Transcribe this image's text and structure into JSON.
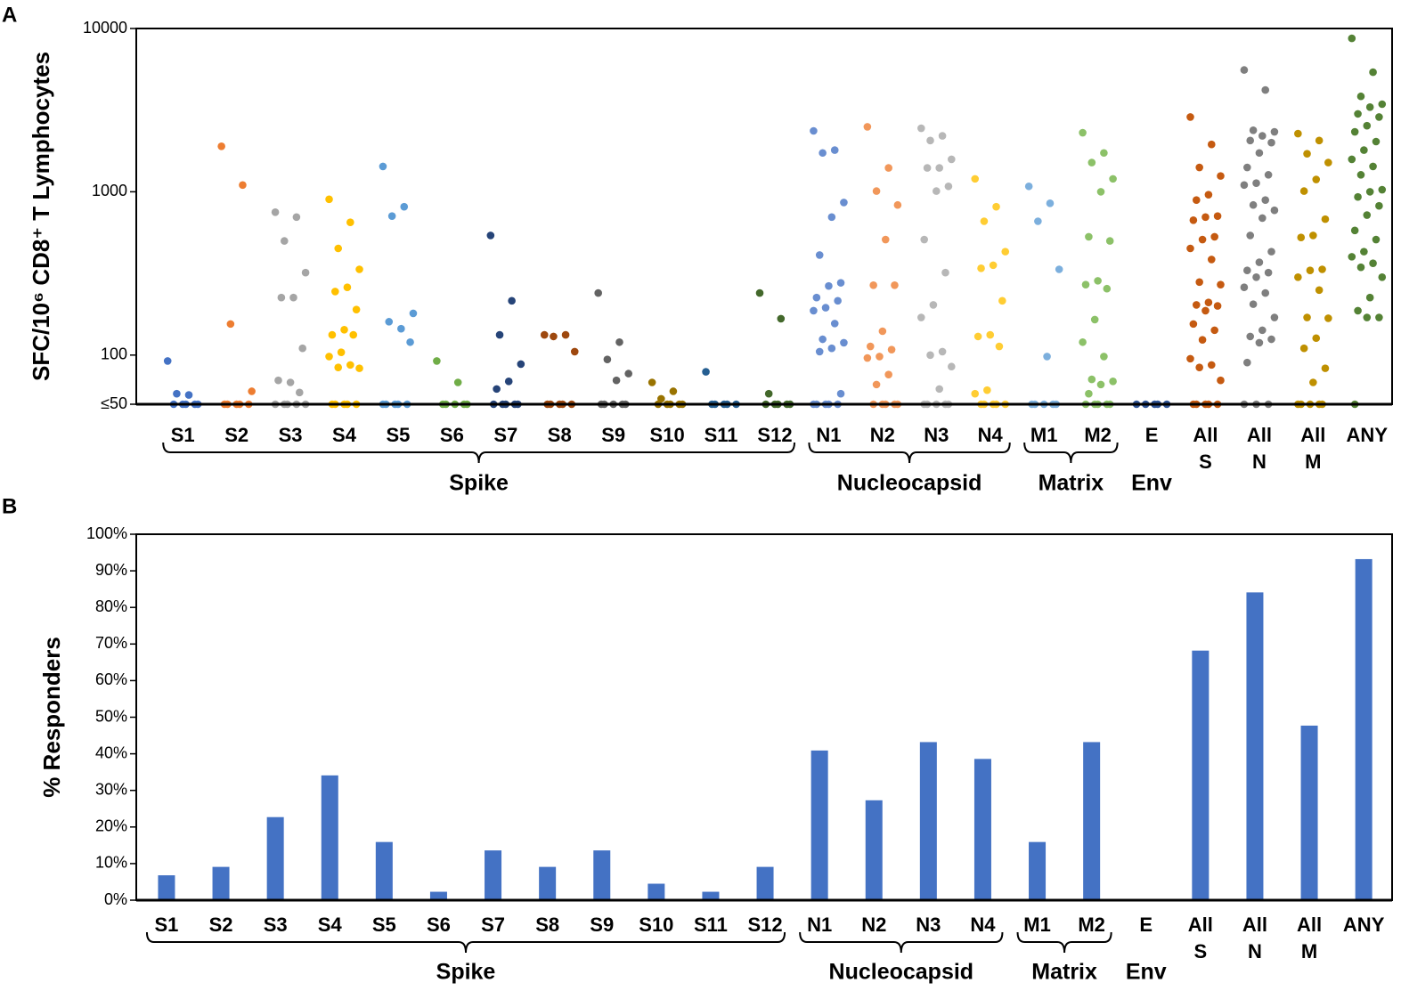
{
  "chart_data": [
    {
      "type": "strip",
      "panel": "A",
      "ylabel": "SFC/10⁶ CD8⁺ T Lymphocytes",
      "log": true,
      "ylim": [
        50,
        10000
      ],
      "yticks": [
        {
          "value": 50,
          "label": "≤50"
        },
        100,
        1000,
        10000
      ],
      "categories": [
        "S1",
        "S2",
        "S3",
        "S4",
        "S5",
        "S6",
        "S7",
        "S8",
        "S9",
        "S10",
        "S11",
        "S12",
        "N1",
        "N2",
        "N3",
        "N4",
        "M1",
        "M2",
        "E",
        "All S",
        "All N",
        "All M",
        "ANY"
      ],
      "colors": [
        "#4472c4",
        "#ed7d31",
        "#a5a5a5",
        "#ffc000",
        "#5b9bd5",
        "#70ad47",
        "#264478",
        "#9e480e",
        "#636363",
        "#997300",
        "#255e91",
        "#43682b",
        "#698ed0",
        "#f1975a",
        "#b7b7b7",
        "#ffcd33",
        "#7cafdd",
        "#8cc168",
        "#2f5597",
        "#c55a11",
        "#7f7f7f",
        "#bf9000",
        "#548235"
      ],
      "points": [
        [
          92,
          57,
          58,
          50,
          50,
          50,
          50,
          50
        ],
        [
          1900,
          1100,
          155,
          60,
          50,
          50,
          50,
          50,
          50
        ],
        [
          750,
          700,
          500,
          320,
          225,
          225,
          110,
          68,
          70,
          59,
          50,
          50,
          50,
          50,
          50
        ],
        [
          900,
          650,
          450,
          335,
          260,
          245,
          190,
          143,
          133,
          133,
          104,
          98,
          87,
          84,
          83,
          50,
          50,
          50,
          50,
          50
        ],
        [
          1430,
          810,
          710,
          180,
          145,
          160,
          120,
          50,
          50,
          50,
          50,
          50
        ],
        [
          92,
          68,
          50,
          50,
          50,
          50,
          50
        ],
        [
          540,
          215,
          133,
          88,
          69,
          62,
          50,
          50,
          50,
          50,
          50
        ],
        [
          133,
          133,
          130,
          105,
          50,
          50,
          50,
          50,
          50
        ],
        [
          240,
          120,
          94,
          77,
          70,
          50,
          50,
          50,
          50,
          50
        ],
        [
          68,
          60,
          54,
          50,
          50,
          50,
          50,
          50
        ],
        [
          79,
          50,
          50,
          50,
          50,
          50
        ],
        [
          240,
          167,
          58,
          50,
          50,
          50,
          50,
          50
        ],
        [
          2360,
          1800,
          1730,
          860,
          700,
          410,
          277,
          265,
          225,
          215,
          195,
          187,
          156,
          125,
          119,
          110,
          105,
          58,
          50,
          50,
          50,
          50,
          50
        ],
        [
          2500,
          1400,
          1010,
          830,
          510,
          268,
          268,
          140,
          113,
          108,
          98,
          96,
          76,
          66,
          50,
          50,
          50,
          50,
          50
        ],
        [
          2450,
          2200,
          2060,
          1580,
          1400,
          1400,
          1080,
          1010,
          510,
          320,
          203,
          170,
          105,
          100,
          85,
          62,
          50,
          50,
          50,
          50,
          50
        ],
        [
          1200,
          810,
          660,
          430,
          355,
          340,
          215,
          133,
          130,
          113,
          61,
          58,
          50,
          50,
          50,
          50,
          50
        ],
        [
          1080,
          850,
          660,
          335,
          98,
          50,
          50,
          50,
          50,
          50
        ],
        [
          2300,
          1730,
          1510,
          1200,
          1000,
          530,
          500,
          285,
          270,
          255,
          165,
          120,
          98,
          71,
          69,
          66,
          58,
          50,
          50,
          50,
          50,
          50
        ],
        [
          50,
          50,
          50,
          50,
          50
        ],
        [
          2870,
          1950,
          1410,
          1250,
          960,
          890,
          710,
          700,
          670,
          530,
          510,
          450,
          385,
          280,
          270,
          210,
          203,
          200,
          187,
          155,
          142,
          124,
          95,
          87,
          84,
          70,
          50,
          50,
          50,
          50,
          50
        ],
        [
          5570,
          4200,
          2380,
          2330,
          2200,
          2060,
          2000,
          1730,
          1410,
          1270,
          1130,
          1100,
          890,
          830,
          770,
          690,
          540,
          430,
          370,
          330,
          320,
          300,
          260,
          240,
          205,
          170,
          142,
          130,
          125,
          119,
          90,
          50,
          50,
          50
        ],
        [
          2270,
          2060,
          1710,
          1510,
          1190,
          1010,
          680,
          540,
          525,
          335,
          330,
          300,
          250,
          170,
          168,
          127,
          110,
          83,
          68,
          50,
          50,
          50,
          50,
          50
        ],
        [
          8700,
          5400,
          3840,
          3440,
          3300,
          3000,
          2870,
          2540,
          2330,
          2030,
          1800,
          1580,
          1430,
          1270,
          1030,
          1000,
          930,
          820,
          720,
          580,
          510,
          430,
          400,
          365,
          345,
          300,
          225,
          187,
          170,
          170,
          50
        ]
      ],
      "groups": [
        {
          "name": "Spike",
          "categories": [
            "S1",
            "S2",
            "S3",
            "S4",
            "S5",
            "S6",
            "S7",
            "S8",
            "S9",
            "S10",
            "S11",
            "S12"
          ]
        },
        {
          "name": "Nucleocapsid",
          "categories": [
            "N1",
            "N2",
            "N3",
            "N4"
          ]
        },
        {
          "name": "Matrix",
          "categories": [
            "M1",
            "M2"
          ]
        },
        {
          "name": "Env",
          "categories": [
            "E"
          ]
        }
      ]
    },
    {
      "type": "bar",
      "panel": "B",
      "ylabel": "% Responders",
      "color": "#4472c4",
      "ylim": [
        0,
        100
      ],
      "yticks": [
        {
          "value": 0,
          "label": "0%"
        },
        {
          "value": 10,
          "label": "10%"
        },
        {
          "value": 20,
          "label": "20%"
        },
        {
          "value": 30,
          "label": "30%"
        },
        {
          "value": 40,
          "label": "40%"
        },
        {
          "value": 50,
          "label": "50%"
        },
        {
          "value": 60,
          "label": "60%"
        },
        {
          "value": 70,
          "label": "70%"
        },
        {
          "value": 80,
          "label": "80%"
        },
        {
          "value": 90,
          "label": "90%"
        },
        {
          "value": 100,
          "label": "100%"
        }
      ],
      "categories": [
        "S1",
        "S2",
        "S3",
        "S4",
        "S5",
        "S6",
        "S7",
        "S8",
        "S9",
        "S10",
        "S11",
        "S12",
        "N1",
        "N2",
        "N3",
        "N4",
        "M1",
        "M2",
        "E",
        "All S",
        "All N",
        "All M",
        "ANY"
      ],
      "values": [
        6.8,
        9.1,
        22.7,
        34.1,
        15.9,
        2.3,
        13.6,
        9.1,
        13.6,
        4.5,
        2.3,
        9.1,
        40.9,
        27.3,
        43.2,
        38.6,
        15.9,
        43.2,
        0,
        68.2,
        84.1,
        47.7,
        93.2
      ],
      "groups": [
        {
          "name": "Spike",
          "categories": [
            "S1",
            "S2",
            "S3",
            "S4",
            "S5",
            "S6",
            "S7",
            "S8",
            "S9",
            "S10",
            "S11",
            "S12"
          ]
        },
        {
          "name": "Nucleocapsid",
          "categories": [
            "N1",
            "N2",
            "N3",
            "N4"
          ]
        },
        {
          "name": "Matrix",
          "categories": [
            "M1",
            "M2"
          ]
        },
        {
          "name": "Env",
          "categories": [
            "E"
          ]
        }
      ]
    }
  ]
}
